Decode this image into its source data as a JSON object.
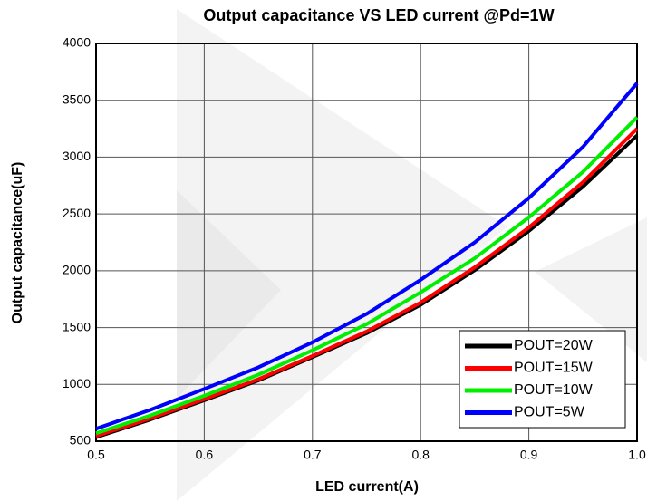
{
  "chart_data": {
    "type": "line",
    "title": "Output capacitance VS LED current @Pd=1W",
    "x_label": "LED current(A)",
    "y_label": "Output capacitance(uF)",
    "x": [
      0.5,
      0.55,
      0.6,
      0.65,
      0.7,
      0.75,
      0.8,
      0.85,
      0.9,
      0.95,
      1.0
    ],
    "series": [
      {
        "name": "POUT=20W",
        "color": "#000000",
        "values": [
          535,
          690,
          860,
          1035,
          1240,
          1450,
          1700,
          2005,
          2350,
          2740,
          3190
        ]
      },
      {
        "name": "POUT=15W",
        "color": "#ff0000",
        "values": [
          545,
          700,
          870,
          1045,
          1250,
          1465,
          1720,
          2030,
          2380,
          2780,
          3250
        ]
      },
      {
        "name": "POUT=10W",
        "color": "#00ee00",
        "values": [
          570,
          725,
          900,
          1085,
          1300,
          1530,
          1810,
          2110,
          2470,
          2870,
          3350
        ]
      },
      {
        "name": "POUT=5W",
        "color": "#0000ff",
        "values": [
          610,
          775,
          960,
          1150,
          1370,
          1620,
          1920,
          2250,
          2640,
          3090,
          3650
        ]
      }
    ],
    "xlim": [
      0.5,
      1.0
    ],
    "xticks": [
      0.5,
      0.6,
      0.7,
      0.8,
      0.9,
      {
        "value": 1.0,
        "label": "1.0"
      }
    ],
    "ylim": [
      500,
      4000
    ],
    "yticks": [
      500,
      1000,
      1500,
      2000,
      2500,
      3000,
      3500,
      4000
    ],
    "grid": true,
    "legend": "lower right"
  }
}
